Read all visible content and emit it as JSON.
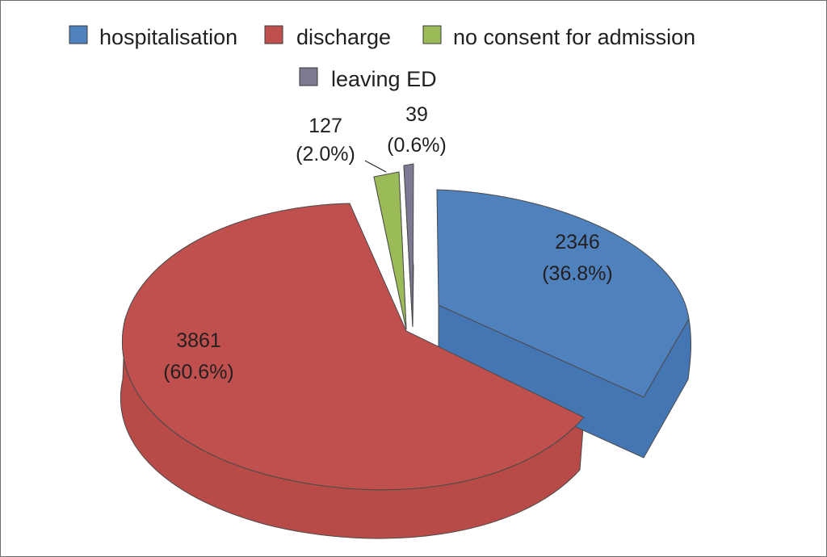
{
  "chart_data": {
    "type": "pie",
    "style": "3d-exploded",
    "legend_position": "top",
    "slices": [
      {
        "label": "hospitalisation",
        "value": 2346,
        "percent_text": "(36.8%)",
        "color": "#4f81bd",
        "side_color": "#4576b4"
      },
      {
        "label": "discharge",
        "value": 3861,
        "percent_text": "(60.6%)",
        "color": "#c0504d",
        "side_color": "#b84a47"
      },
      {
        "label": "no consent for admission",
        "value": 127,
        "percent_text": "(2.0%)",
        "color": "#9bbb59",
        "side_color": "#8eae4e"
      },
      {
        "label": "leaving ED",
        "value": 39,
        "percent_text": "(0.6%)",
        "color": "#7f7892",
        "side_color": "#726b85"
      }
    ]
  }
}
